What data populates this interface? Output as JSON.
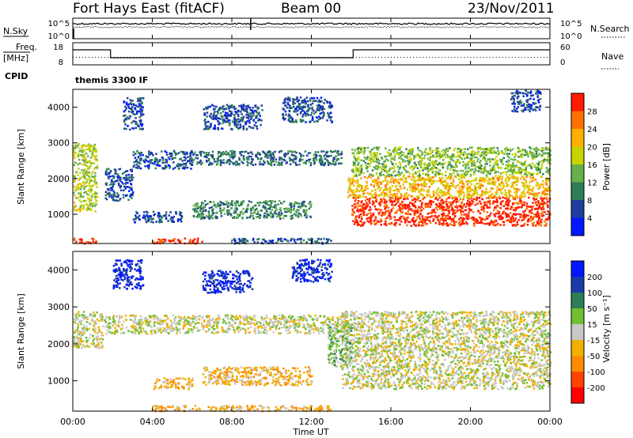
{
  "header": {
    "station": "Fort Hays East (fitACF)",
    "beam": "Beam 00",
    "date": "23/Nov/2011"
  },
  "noise_panel": {
    "left_label": "N.Sky",
    "right_label": "N.Search",
    "left_ticks": [
      "10^5",
      "10^0"
    ],
    "right_ticks": [
      "10^5",
      "10^0"
    ]
  },
  "freq_panel": {
    "left_label_1": "Freq.",
    "left_label_2": "[MHz]",
    "right_label": "Nave",
    "left_ticks": [
      "18",
      "8"
    ],
    "right_ticks": [
      "60",
      "0"
    ],
    "freq_steps": [
      {
        "start_hour": 0,
        "end_hour": 1.9,
        "level": "high"
      },
      {
        "start_hour": 1.9,
        "end_hour": 14.1,
        "level": "low"
      },
      {
        "start_hour": 14.1,
        "end_hour": 24,
        "level": "high"
      }
    ]
  },
  "cpid": {
    "label": "CPID",
    "value": "themis 3300 IF"
  },
  "colors": {
    "power_scale": [
      "#0018ff",
      "#1f3e9e",
      "#2e7d57",
      "#65b04a",
      "#c7d400",
      "#ffb000",
      "#ff7000",
      "#ff1a00"
    ],
    "velocity_scale": [
      "#ff0000",
      "#ff4400",
      "#ff8a00",
      "#f2b000",
      "#c8c8c8",
      "#70c030",
      "#2e7d57",
      "#1a3aa8",
      "#0018ff"
    ],
    "ground_scatter": "#c8c8c8"
  },
  "chart_data": [
    {
      "type": "heatmap",
      "panel": "power",
      "ylabel": "Slant Range [km]",
      "ylim": [
        180,
        4500
      ],
      "xlim_hours": [
        0,
        24
      ],
      "y_ticks": [
        "1000",
        "2000",
        "3000",
        "4000"
      ],
      "colorbar_label": "Power [dB]",
      "colorbar_ticks": [
        "4",
        "8",
        "12",
        "16",
        "20",
        "24",
        "28"
      ],
      "color_range": [
        0,
        30
      ],
      "regions": [
        {
          "t0": 0.0,
          "t1": 1.2,
          "r0": 1100,
          "r1": 3000,
          "value": 16
        },
        {
          "t0": 1.6,
          "t1": 3.0,
          "r0": 1400,
          "r1": 2300,
          "value": 6
        },
        {
          "t0": 3.0,
          "t1": 6.0,
          "r0": 2300,
          "r1": 2800,
          "value": 6
        },
        {
          "t0": 6.0,
          "t1": 13.5,
          "r0": 2400,
          "r1": 2800,
          "value": 8
        },
        {
          "t0": 6.0,
          "t1": 12.0,
          "r0": 900,
          "r1": 1400,
          "value": 10
        },
        {
          "t0": 3.0,
          "t1": 5.5,
          "r0": 800,
          "r1": 1100,
          "value": 6
        },
        {
          "t0": 14.0,
          "t1": 24.0,
          "r0": 700,
          "r1": 1500,
          "value": 28
        },
        {
          "t0": 13.8,
          "t1": 24.0,
          "r0": 1500,
          "r1": 2100,
          "value": 20
        },
        {
          "t0": 14.0,
          "t1": 24.0,
          "r0": 2100,
          "r1": 2900,
          "value": 14
        },
        {
          "t0": 0.0,
          "t1": 1.2,
          "r0": 200,
          "r1": 350,
          "value": 28
        },
        {
          "t0": 4.0,
          "t1": 6.5,
          "r0": 200,
          "r1": 350,
          "value": 28
        },
        {
          "t0": 8.0,
          "t1": 13.0,
          "r0": 200,
          "r1": 350,
          "value": 6
        },
        {
          "t0": 2.5,
          "t1": 3.5,
          "r0": 3400,
          "r1": 4300,
          "value": 6
        },
        {
          "t0": 6.5,
          "t1": 9.5,
          "r0": 3400,
          "r1": 4100,
          "value": 6
        },
        {
          "t0": 10.5,
          "t1": 13.0,
          "r0": 3600,
          "r1": 4300,
          "value": 6
        },
        {
          "t0": 22.0,
          "t1": 23.5,
          "r0": 3900,
          "r1": 4500,
          "value": 6
        }
      ]
    },
    {
      "type": "heatmap",
      "panel": "velocity",
      "ylabel": "Slant Range [km]",
      "xlabel": "Time UT",
      "ylim": [
        180,
        4500
      ],
      "xlim_hours": [
        0,
        24
      ],
      "y_ticks": [
        "1000",
        "2000",
        "3000",
        "4000"
      ],
      "x_ticks": [
        "00:00",
        "04:00",
        "08:00",
        "12:00",
        "16:00",
        "20:00",
        "00:00"
      ],
      "colorbar_label": "Velocity [m s⁻¹]",
      "colorbar_ticks": [
        "200",
        "100",
        "50",
        "15",
        "-15",
        "-50",
        "-100",
        "-200"
      ],
      "color_range": [
        -250,
        250
      ],
      "regions": [
        {
          "t0": 0.0,
          "t1": 1.5,
          "r0": 1900,
          "r1": 2900,
          "value": 0
        },
        {
          "t0": 1.5,
          "t1": 13.8,
          "r0": 2300,
          "r1": 2800,
          "value": 0
        },
        {
          "t0": 13.5,
          "t1": 24.0,
          "r0": 800,
          "r1": 2900,
          "value": 0
        },
        {
          "t0": 6.5,
          "t1": 12.0,
          "r0": 900,
          "r1": 1400,
          "value": -60
        },
        {
          "t0": 4.0,
          "t1": 6.0,
          "r0": 800,
          "r1": 1100,
          "value": -60
        },
        {
          "t0": 4.0,
          "t1": 13.0,
          "r0": 200,
          "r1": 350,
          "value": -60
        },
        {
          "t0": 12.8,
          "t1": 14.0,
          "r0": 1400,
          "r1": 2600,
          "value": 40
        },
        {
          "t0": 2.0,
          "t1": 3.5,
          "r0": 3500,
          "r1": 4300,
          "value": 200
        },
        {
          "t0": 6.5,
          "t1": 9.0,
          "r0": 3400,
          "r1": 4000,
          "value": 200
        },
        {
          "t0": 11.0,
          "t1": 13.0,
          "r0": 3700,
          "r1": 4300,
          "value": 200
        }
      ]
    }
  ],
  "footer": {
    "xlabel": "Time UT"
  }
}
